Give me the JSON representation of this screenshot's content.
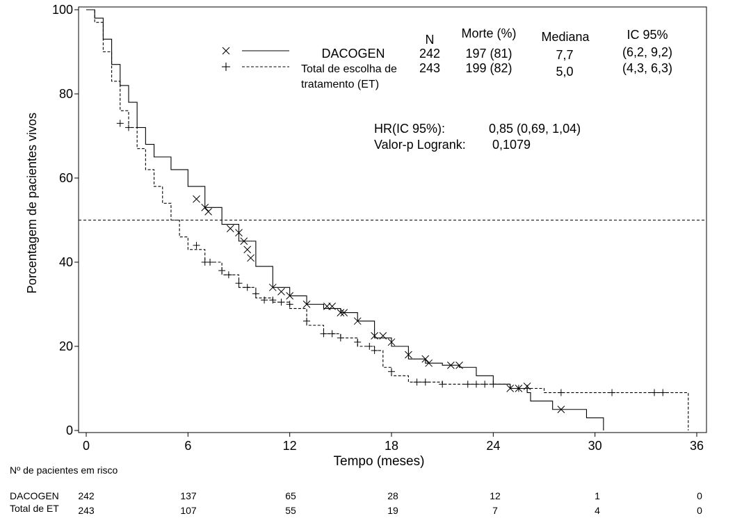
{
  "chart_data": {
    "type": "line",
    "subtype": "kaplan-meier",
    "title": "",
    "xlabel": "Tempo (meses)",
    "ylabel": "Porcentagem de pacientes vivos",
    "xlim": [
      0,
      36
    ],
    "ylim": [
      0,
      100
    ],
    "xticks": [
      0,
      6,
      12,
      18,
      24,
      30,
      36
    ],
    "yticks": [
      0,
      20,
      40,
      60,
      80,
      100
    ],
    "reference_line_y": 50,
    "series": [
      {
        "name": "DACOGEN",
        "line_style": "solid",
        "censor_marker": "×",
        "points": [
          [
            0,
            100
          ],
          [
            0.5,
            98
          ],
          [
            1,
            93
          ],
          [
            1.5,
            87
          ],
          [
            2,
            82
          ],
          [
            2.5,
            78
          ],
          [
            3,
            72
          ],
          [
            3.5,
            68
          ],
          [
            4,
            65
          ],
          [
            5,
            62
          ],
          [
            6,
            58
          ],
          [
            7,
            53
          ],
          [
            8,
            49
          ],
          [
            9,
            45
          ],
          [
            10,
            39
          ],
          [
            11,
            34
          ],
          [
            12,
            32
          ],
          [
            13,
            30
          ],
          [
            14,
            29
          ],
          [
            15,
            28
          ],
          [
            16,
            26
          ],
          [
            17,
            22
          ],
          [
            18,
            20
          ],
          [
            19,
            17
          ],
          [
            20,
            16
          ],
          [
            21,
            15.5
          ],
          [
            22,
            15
          ],
          [
            23,
            13
          ],
          [
            24,
            11
          ],
          [
            25,
            10
          ],
          [
            26,
            9
          ],
          [
            26.2,
            7
          ],
          [
            27,
            7
          ],
          [
            27.5,
            5
          ],
          [
            28.5,
            5
          ],
          [
            29.5,
            3
          ],
          [
            30.5,
            3
          ],
          [
            30.5,
            0
          ]
        ],
        "censors": [
          [
            6.5,
            55
          ],
          [
            7,
            53
          ],
          [
            7.2,
            52
          ],
          [
            8.5,
            48
          ],
          [
            9,
            47
          ],
          [
            9.3,
            45
          ],
          [
            9.5,
            43
          ],
          [
            9.7,
            41
          ],
          [
            11,
            34
          ],
          [
            11.5,
            33
          ],
          [
            12,
            32
          ],
          [
            13,
            30
          ],
          [
            14.2,
            29.5
          ],
          [
            14.5,
            29.5
          ],
          [
            15,
            28
          ],
          [
            15.2,
            28
          ],
          [
            16,
            26
          ],
          [
            17,
            22.5
          ],
          [
            17.5,
            22.5
          ],
          [
            18,
            21
          ],
          [
            19,
            18
          ],
          [
            20,
            17
          ],
          [
            20.2,
            16
          ],
          [
            21.5,
            15.5
          ],
          [
            22,
            15.5
          ],
          [
            25,
            10
          ],
          [
            25.5,
            10
          ],
          [
            26,
            10.5
          ],
          [
            28,
            5
          ]
        ],
        "n": "242",
        "deaths": "197 (81)",
        "median": "7,7",
        "ci95": "(6,2, 9,2)"
      },
      {
        "name": "Total de escolha de tratamento (ET)",
        "line_style": "dashed",
        "censor_marker": "+",
        "points": [
          [
            0,
            100
          ],
          [
            0.5,
            97
          ],
          [
            1,
            90
          ],
          [
            1.5,
            83
          ],
          [
            2,
            76
          ],
          [
            2.5,
            72
          ],
          [
            3,
            67
          ],
          [
            3.5,
            62
          ],
          [
            4,
            58
          ],
          [
            4.5,
            54
          ],
          [
            5,
            50
          ],
          [
            5.5,
            46
          ],
          [
            6,
            43
          ],
          [
            7,
            40
          ],
          [
            8,
            37
          ],
          [
            9,
            34
          ],
          [
            10,
            31.5
          ],
          [
            11,
            30.5
          ],
          [
            12,
            29
          ],
          [
            13,
            25
          ],
          [
            14,
            23
          ],
          [
            15,
            22
          ],
          [
            16,
            20
          ],
          [
            17,
            19
          ],
          [
            17.5,
            15
          ],
          [
            18,
            13
          ],
          [
            19,
            11.5
          ],
          [
            21,
            11
          ],
          [
            22,
            11
          ],
          [
            24,
            11
          ],
          [
            25,
            10
          ],
          [
            26,
            10
          ],
          [
            27,
            10
          ],
          [
            27,
            9
          ],
          [
            30,
            9
          ],
          [
            35.5,
            9
          ],
          [
            35.5,
            0
          ]
        ],
        "censors": [
          [
            2,
            73
          ],
          [
            2.5,
            72
          ],
          [
            6.5,
            44
          ],
          [
            7,
            40
          ],
          [
            7.3,
            40
          ],
          [
            8,
            38
          ],
          [
            8.4,
            37
          ],
          [
            9,
            35
          ],
          [
            9.5,
            34
          ],
          [
            10,
            32.5
          ],
          [
            10.5,
            31
          ],
          [
            11,
            31
          ],
          [
            11.5,
            30.5
          ],
          [
            12,
            30
          ],
          [
            13,
            26
          ],
          [
            14,
            23
          ],
          [
            14.5,
            23
          ],
          [
            15,
            22
          ],
          [
            16,
            21
          ],
          [
            16.7,
            20
          ],
          [
            17,
            19
          ],
          [
            18,
            14
          ],
          [
            19.5,
            11.5
          ],
          [
            20,
            11.5
          ],
          [
            21,
            11
          ],
          [
            22.5,
            11
          ],
          [
            23,
            11
          ],
          [
            23.5,
            11
          ],
          [
            24,
            11
          ],
          [
            25.5,
            10
          ],
          [
            26,
            10
          ],
          [
            28,
            9
          ],
          [
            31,
            9
          ],
          [
            33.5,
            9
          ],
          [
            34,
            9
          ]
        ],
        "n": "243",
        "deaths": "199 (82)",
        "median": "5,0",
        "ci95": "(4,3, 6,3)"
      }
    ],
    "legend": {
      "headers": {
        "n": "N",
        "deaths": "Morte (%)",
        "median": "Mediana",
        "ci": "IC 95%"
      },
      "row1_label": "DACOGEN",
      "row2_label_line1": "Total de escolha de",
      "row2_label_line2": "tratamento (ET)",
      "placement": "top-right"
    },
    "stats": {
      "hr_label": "HR(IC 95%):",
      "hr_value": "0,85 (0,69, 1,04)",
      "p_label": "Valor-p Logrank:",
      "p_value": "0,1079"
    },
    "risk_table": {
      "title": "Nº de pacientes em risco",
      "rows": [
        {
          "label": "DACOGEN",
          "values": [
            "242",
            "137",
            "65",
            "28",
            "12",
            "1",
            "0"
          ]
        },
        {
          "label": "Total de ET",
          "values": [
            "243",
            "107",
            "55",
            "19",
            "7",
            "4",
            "0"
          ]
        }
      ]
    }
  }
}
